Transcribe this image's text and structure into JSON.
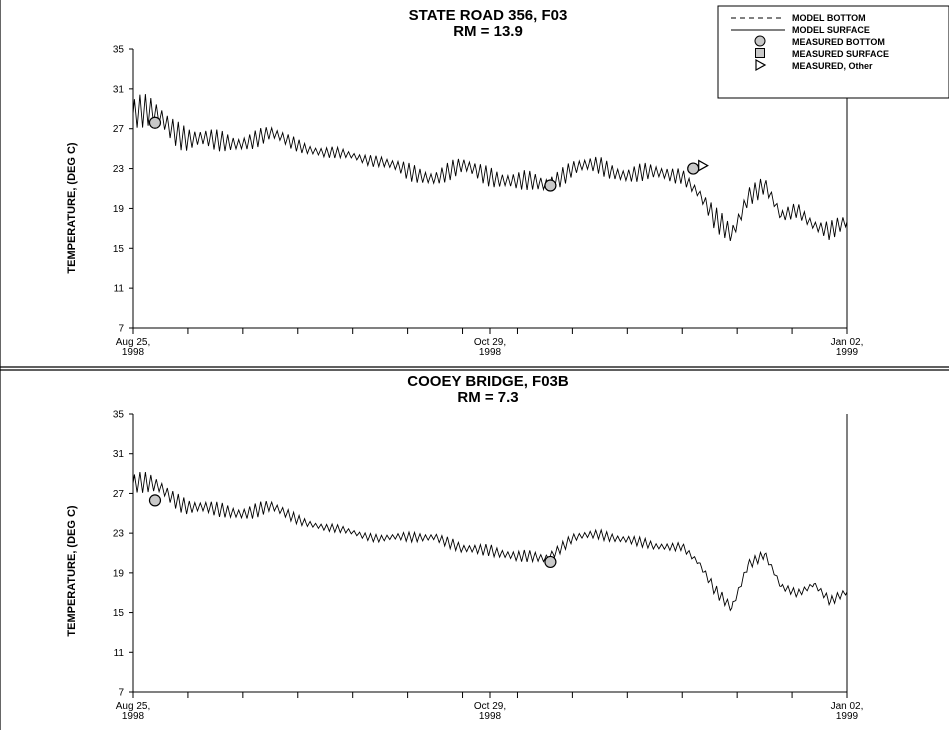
{
  "legend": {
    "items": [
      {
        "label": "MODEL BOTTOM",
        "symbol": "dashed-line"
      },
      {
        "label": "MODEL SURFACE",
        "symbol": "solid-line"
      },
      {
        "label": "MEASURED BOTTOM",
        "symbol": "circle"
      },
      {
        "label": "MEASURED SURFACE",
        "symbol": "square"
      },
      {
        "label": "MEASURED, Other",
        "symbol": "triangle"
      }
    ]
  },
  "chart_data": [
    {
      "type": "line",
      "title": "STATE ROAD 356, F03",
      "subtitle": "RM = 13.9",
      "ylabel": "TEMPERATURE, (DEG C)",
      "xlabel": "",
      "ylim": [
        7,
        35
      ],
      "yticks": [
        7,
        11,
        15,
        19,
        23,
        27,
        31,
        35
      ],
      "xlim": [
        "1998-08-25",
        "1999-01-02"
      ],
      "xtick_labels": [
        {
          "date": "1998-08-25",
          "line1": "Aug 25,",
          "line2": "1998"
        },
        {
          "date": "1998-10-29",
          "line1": "Oct 29,",
          "line2": "1998"
        },
        {
          "date": "1999-01-02",
          "line1": "Jan 02,",
          "line2": "1999"
        }
      ],
      "minor_tick_dates": [
        "1998-09-04",
        "1998-09-14",
        "1998-09-24",
        "1998-10-04",
        "1998-10-14",
        "1998-10-24",
        "1998-11-03",
        "1998-11-13",
        "1998-11-23",
        "1998-12-03",
        "1998-12-13",
        "1998-12-23"
      ],
      "series": [
        {
          "style": "solid",
          "daily_amplitude_note": "",
          "x": [
            "1998-08-25",
            "1998-08-30",
            "1998-09-04",
            "1998-09-09",
            "1998-09-14",
            "1998-09-19",
            "1998-09-24",
            "1998-09-29",
            "1998-10-04",
            "1998-10-09",
            "1998-10-14",
            "1998-10-19",
            "1998-10-24",
            "1998-10-29",
            "1998-11-03",
            "1998-11-08",
            "1998-11-13",
            "1998-11-18",
            "1998-11-23",
            "1998-11-28",
            "1998-12-03",
            "1998-12-06",
            "1998-12-09",
            "1998-12-12",
            "1998-12-15",
            "1998-12-18",
            "1998-12-21",
            "1998-12-24",
            "1998-12-27",
            "1998-12-30",
            "1999-01-02"
          ],
          "y": [
            28.5,
            28,
            26.2,
            25.5,
            25.8,
            26.3,
            25.5,
            24.5,
            24.3,
            23.8,
            22.5,
            22.3,
            23,
            22.5,
            21.5,
            21.5,
            23,
            23.2,
            22.5,
            22.4,
            22.5,
            20.5,
            17.5,
            16.5,
            20.5,
            21.2,
            18,
            19,
            17.5,
            16.5,
            17.5
          ],
          "amp": [
            3.5,
            3.2,
            2.5,
            2.2,
            1.8,
            1.8,
            1.3,
            1.2,
            1,
            1.2,
            1.8,
            1.8,
            2,
            2,
            2,
            2,
            1.8,
            1.8,
            1.8,
            1.8,
            1.5,
            1.5,
            2.5,
            2.5,
            2,
            2,
            1.5,
            1.5,
            1.5,
            2,
            1.5
          ]
        }
      ],
      "measured_bottom": [
        {
          "x": "1998-08-29",
          "y": 27.6
        },
        {
          "x": "1998-11-09",
          "y": 21.3
        },
        {
          "x": "1998-12-05",
          "y": 23
        }
      ],
      "measured_other": [
        {
          "x": "1998-12-06",
          "y": 23.3
        }
      ]
    },
    {
      "type": "line",
      "title": "COOEY BRIDGE, F03B",
      "subtitle": "RM = 7.3",
      "ylabel": "TEMPERATURE, (DEG C)",
      "xlabel": "",
      "ylim": [
        7,
        35
      ],
      "yticks": [
        7,
        11,
        15,
        19,
        23,
        27,
        31,
        35
      ],
      "xlim": [
        "1998-08-25",
        "1999-01-02"
      ],
      "xtick_labels": [
        {
          "date": "1998-08-25",
          "line1": "Aug 25,",
          "line2": "1998"
        },
        {
          "date": "1998-10-29",
          "line1": "Oct 29,",
          "line2": "1998"
        },
        {
          "date": "1999-01-02",
          "line1": "Jan 02,",
          "line2": "1999"
        }
      ],
      "minor_tick_dates": [
        "1998-09-04",
        "1998-09-14",
        "1998-09-24",
        "1998-10-04",
        "1998-10-14",
        "1998-10-24",
        "1998-11-03",
        "1998-11-13",
        "1998-11-23",
        "1998-12-03",
        "1998-12-13",
        "1998-12-23"
      ],
      "series": [
        {
          "style": "solid",
          "x": [
            "1998-08-25",
            "1998-08-30",
            "1998-09-04",
            "1998-09-09",
            "1998-09-14",
            "1998-09-19",
            "1998-09-24",
            "1998-09-29",
            "1998-10-04",
            "1998-10-09",
            "1998-10-14",
            "1998-10-19",
            "1998-10-24",
            "1998-10-29",
            "1998-11-03",
            "1998-11-08",
            "1998-11-13",
            "1998-11-18",
            "1998-11-23",
            "1998-11-28",
            "1998-12-03",
            "1998-12-06",
            "1998-12-09",
            "1998-12-12",
            "1998-12-15",
            "1998-12-18",
            "1998-12-21",
            "1998-12-24",
            "1998-12-27",
            "1998-12-30",
            "1999-01-02"
          ],
          "y": [
            28,
            27.5,
            25.8,
            25.2,
            25.2,
            25.5,
            24.5,
            23.5,
            23.1,
            22.5,
            22.5,
            22.8,
            21.2,
            21.5,
            20.5,
            20.5,
            22.5,
            22.8,
            22.5,
            21.5,
            21.8,
            20,
            17,
            15.5,
            20,
            20.8,
            17.5,
            17,
            18,
            16,
            17
          ],
          "amp": [
            2.2,
            2,
            1.6,
            1.5,
            1.5,
            1.5,
            1,
            0.8,
            0.8,
            0.8,
            1,
            1,
            1.2,
            1.2,
            1.2,
            1.2,
            1,
            1,
            1,
            1,
            0.8,
            0.8,
            1.2,
            1.2,
            1,
            1,
            0.8,
            0.8,
            0.8,
            1,
            0.8
          ]
        }
      ],
      "measured_bottom": [
        {
          "x": "1998-08-29",
          "y": 26.3
        },
        {
          "x": "1998-11-09",
          "y": 20.1
        }
      ],
      "measured_other": []
    }
  ]
}
